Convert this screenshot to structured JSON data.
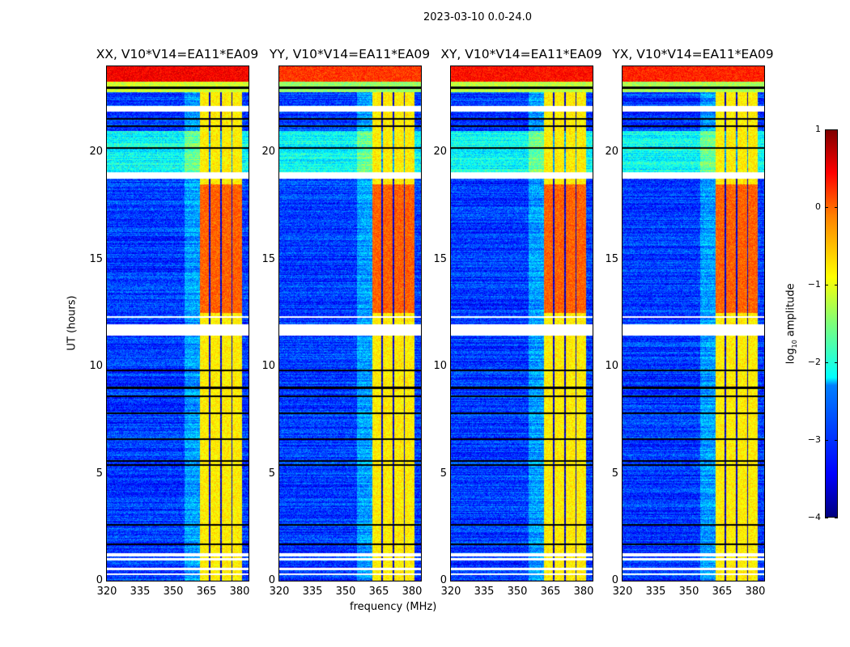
{
  "suptitle": "2023-03-10 0.0-24.0",
  "chart_data": {
    "type": "heatmap",
    "title": "2023-03-10 0.0-24.0",
    "xlabel": "frequency (MHz)",
    "ylabel": "UT (hours)",
    "xlim": [
      320,
      384
    ],
    "ylim": [
      0,
      24
    ],
    "xticks": [
      "320",
      "335",
      "350",
      "365",
      "380"
    ],
    "yticks": [
      "0",
      "5",
      "10",
      "15",
      "20"
    ],
    "xtick_values": [
      320,
      335,
      350,
      365,
      380
    ],
    "ytick_values": [
      0,
      5,
      10,
      15,
      20
    ],
    "panels": [
      {
        "title": "XX, V10*V14=EA11*EA09",
        "top_level": 0.4
      },
      {
        "title": "YY, V10*V14=EA11*EA09",
        "top_level": 0.1
      },
      {
        "title": "XY, V10*V14=EA11*EA09",
        "top_level": 0.3
      },
      {
        "title": "YX, V10*V14=EA11*EA09",
        "top_level": 0.2
      }
    ],
    "colormap": "jet",
    "colorbar": {
      "label_main": "log",
      "label_sub": "10",
      "label_rest": " amplitude",
      "range": [
        -4,
        1
      ],
      "ticks": [
        "1",
        "0",
        "−1",
        "−2",
        "−3",
        "−4"
      ],
      "tick_values": [
        1,
        0,
        -1,
        -2,
        -3,
        -4
      ]
    },
    "rfi_band_mhz": [
      362,
      381
    ],
    "rfi_band_gaps_mhz": [
      366.5,
      371.5,
      376.5
    ],
    "band_level_day": -0.1,
    "band_level_other": -0.8,
    "band_strong_hours": [
      12.5,
      18.5
    ],
    "background_level": -3.1,
    "flagged_hours_white": [
      [
        0.25,
        0.35
      ],
      [
        0.5,
        0.6
      ],
      [
        0.95,
        1.05
      ],
      [
        1.15,
        1.3
      ],
      [
        11.45,
        11.95
      ],
      [
        12.25,
        12.35
      ],
      [
        18.75,
        19.05
      ],
      [
        21.9,
        22.15
      ]
    ],
    "black_lines_hours": [
      1.7,
      2.6,
      5.4,
      5.6,
      6.6,
      7.8,
      8.6,
      9.0,
      9.8,
      20.2,
      21.2,
      21.55,
      23.0
    ]
  }
}
